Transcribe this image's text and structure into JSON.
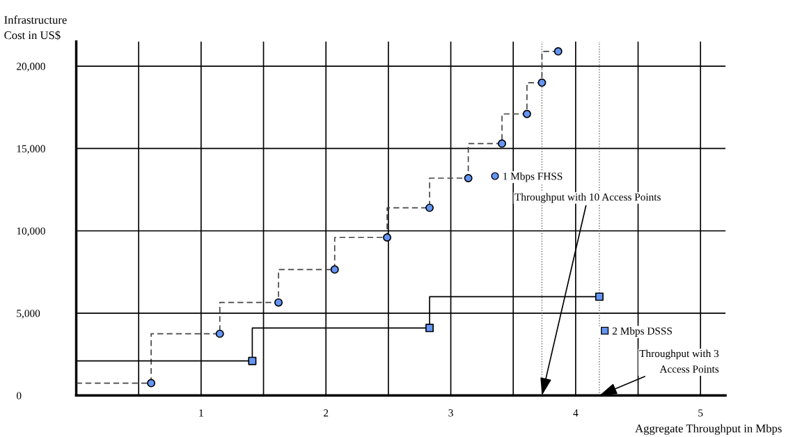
{
  "chart_data": {
    "type": "step",
    "xlabel": "Aggregate Throughput in Mbps",
    "ylabel": "Infrastructure\nCost in US$",
    "series": [
      {
        "name": "1 Mbps FHSS",
        "color": "#6495f5",
        "marker": "circle",
        "line_style": "dashed",
        "x": [
          0.6,
          1.15,
          1.62,
          2.07,
          2.49,
          2.83,
          3.14,
          3.41,
          3.61,
          3.73,
          3.86
        ],
        "values": [
          750,
          3750,
          5650,
          7650,
          9600,
          11400,
          13200,
          15300,
          17100,
          19000,
          20900
        ]
      },
      {
        "name": "2 Mbps DSSS",
        "color": "#6495f5",
        "marker": "square",
        "line_style": "solid",
        "x": [
          1.41,
          2.83,
          4.19
        ],
        "values": [
          2100,
          4100,
          6000
        ]
      },
      {
        "type": "line",
        "color": "#444444",
        "marker": "none",
        "line_style": "dashed",
        "x": [
          0,
          0.6
        ],
        "values": [
          750,
          750
        ]
      },
      {
        "type": "line",
        "color": "#000000",
        "marker": "none",
        "line_style": "solid",
        "x": [
          0,
          1.41
        ],
        "values": [
          2100,
          2100
        ]
      }
    ],
    "xlim": [
      0,
      5.2
    ],
    "ylim": [
      0,
      21500
    ],
    "xticks": [
      {
        "value": 0.5,
        "label": null
      },
      1,
      {
        "value": 1.5,
        "label": null
      },
      2,
      {
        "value": 2.5,
        "label": null
      },
      3,
      {
        "value": 3.5,
        "label": null
      },
      4,
      {
        "value": 4.5,
        "label": null
      },
      5
    ],
    "yticks": [
      0,
      {
        "value": 5000,
        "label": "5,000"
      },
      {
        "value": 10000,
        "label": "10,000"
      },
      {
        "value": 15000,
        "label": "15,000"
      },
      {
        "value": 20000,
        "label": "20,000"
      }
    ],
    "grid": true,
    "legend": "right",
    "ref_lines": [
      {
        "axis": "x",
        "value": 3.73,
        "line_style": "dotted"
      },
      {
        "axis": "x",
        "value": 4.19,
        "line_style": "dotted"
      }
    ],
    "annotations": [
      {
        "text": "Throughput with 10 Access Points",
        "x": 3.73,
        "y": 0
      },
      {
        "text": "Throughput with 3\nAccess Points",
        "x": 4.19,
        "y": 0
      }
    ]
  }
}
